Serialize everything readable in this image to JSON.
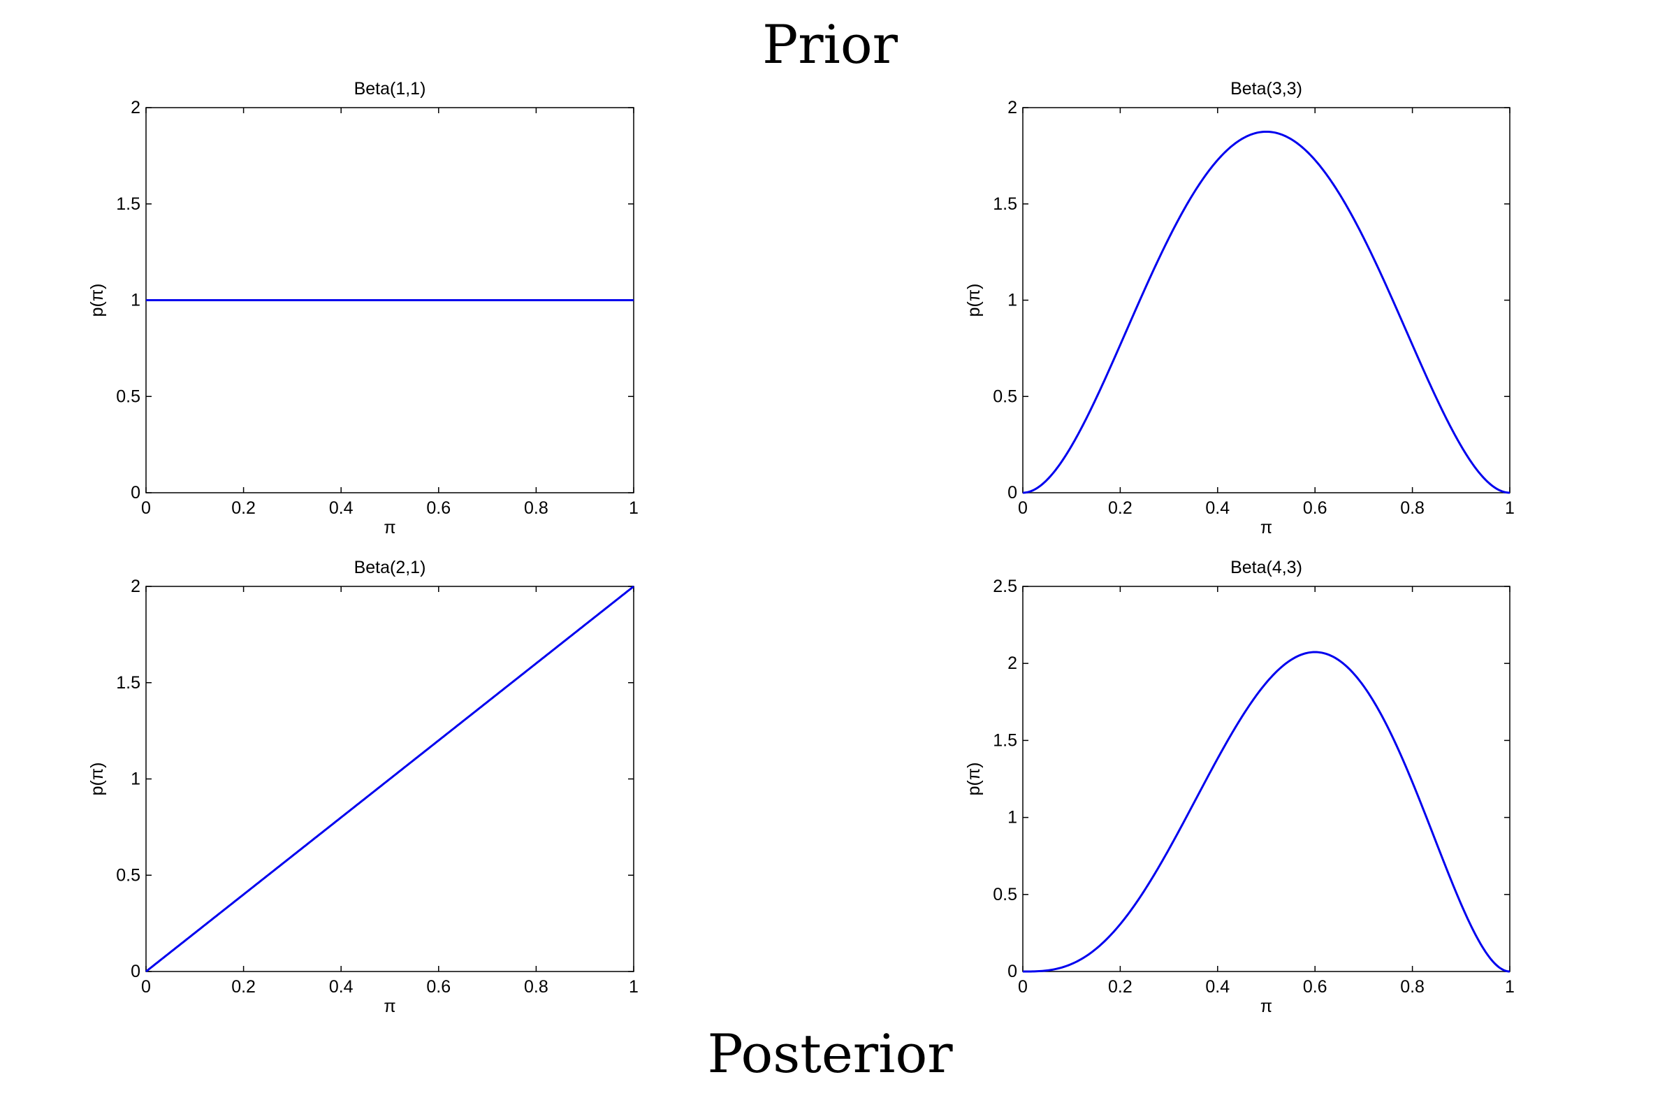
{
  "headings": {
    "top": "Prior",
    "bottom": "Posterior"
  },
  "colors": {
    "curve": "#0000ee",
    "axes": "#000000"
  },
  "chart_data": [
    {
      "id": "beta-1-1",
      "type": "line",
      "title": "Beta(1,1)",
      "xlabel": "π",
      "ylabel": "p(π)",
      "alpha": 1,
      "beta": 1,
      "xlim": [
        0,
        1
      ],
      "ylim": [
        0,
        2
      ],
      "xticks": [
        0,
        0.2,
        0.4,
        0.6,
        0.8,
        1
      ],
      "yticks": [
        0,
        0.5,
        1,
        1.5,
        2
      ],
      "grid": false
    },
    {
      "id": "beta-3-3",
      "type": "line",
      "title": "Beta(3,3)",
      "xlabel": "π",
      "ylabel": "p(π)",
      "alpha": 3,
      "beta": 3,
      "xlim": [
        0,
        1
      ],
      "ylim": [
        0,
        2
      ],
      "xticks": [
        0,
        0.2,
        0.4,
        0.6,
        0.8,
        1
      ],
      "yticks": [
        0,
        0.5,
        1,
        1.5,
        2
      ],
      "grid": false
    },
    {
      "id": "beta-2-1",
      "type": "line",
      "title": "Beta(2,1)",
      "xlabel": "π",
      "ylabel": "p(π)",
      "alpha": 2,
      "beta": 1,
      "xlim": [
        0,
        1
      ],
      "ylim": [
        0,
        2
      ],
      "xticks": [
        0,
        0.2,
        0.4,
        0.6,
        0.8,
        1
      ],
      "yticks": [
        0,
        0.5,
        1,
        1.5,
        2
      ],
      "grid": false
    },
    {
      "id": "beta-4-3",
      "type": "line",
      "title": "Beta(4,3)",
      "xlabel": "π",
      "ylabel": "p(π)",
      "alpha": 4,
      "beta": 3,
      "xlim": [
        0,
        1
      ],
      "ylim": [
        0,
        2.5
      ],
      "xticks": [
        0,
        0.2,
        0.4,
        0.6,
        0.8,
        1
      ],
      "yticks": [
        0,
        0.5,
        1,
        1.5,
        2,
        2.5
      ],
      "grid": false
    }
  ]
}
